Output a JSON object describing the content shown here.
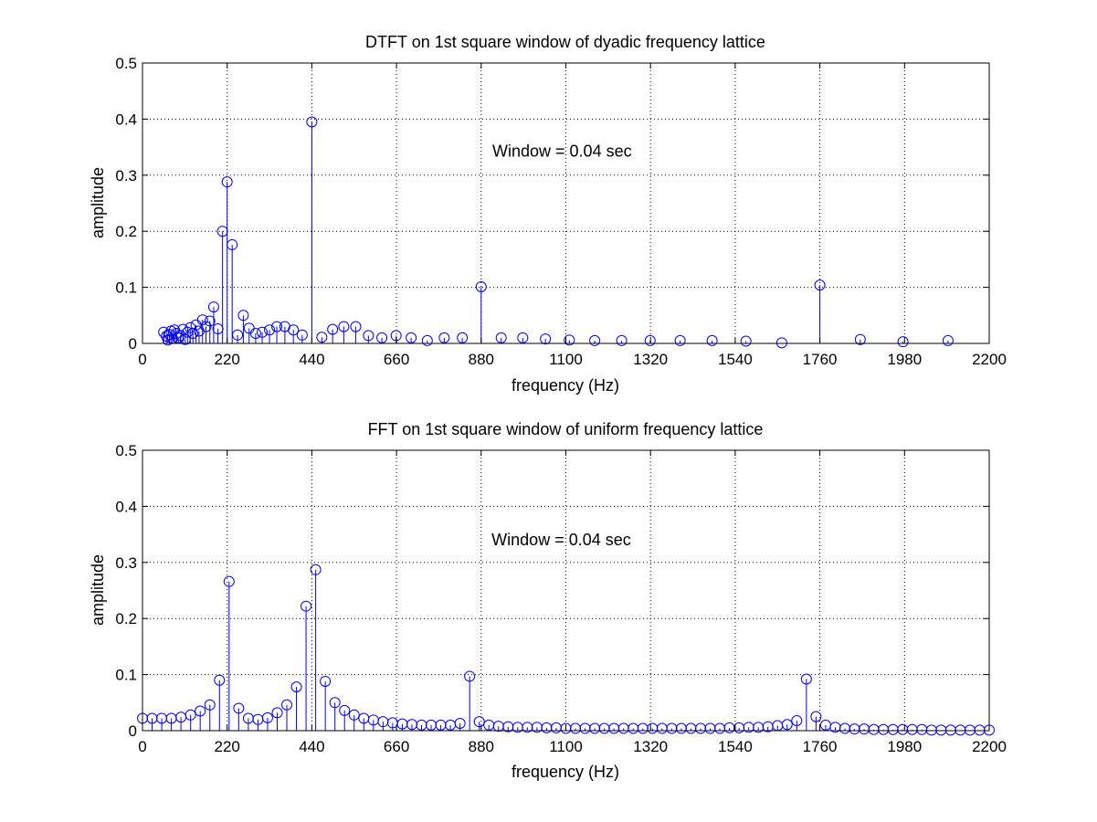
{
  "figure": {
    "background": "#ffffff",
    "stem_color": "#0000ff",
    "grid_color": "#000000"
  },
  "chart_data": [
    {
      "type": "stem",
      "title": "DTFT on 1st square window of dyadic frequency lattice",
      "xlabel": "frequency (Hz)",
      "ylabel": "amplitude",
      "xlim": [
        0,
        2200
      ],
      "ylim": [
        0,
        0.5
      ],
      "x_ticks": [
        0,
        220,
        440,
        660,
        880,
        1100,
        1320,
        1540,
        1760,
        1980,
        2200
      ],
      "x_tick_labels": [
        "0",
        "220",
        "440",
        "660",
        "880",
        "1100",
        "1320",
        "1540",
        "1760",
        "1980",
        "2200"
      ],
      "y_ticks": [
        0,
        0.1,
        0.2,
        0.3,
        0.4,
        0.5
      ],
      "y_tick_labels": [
        "0",
        "0.1",
        "0.2",
        "0.3",
        "0.4",
        "0.5"
      ],
      "grid": true,
      "annotation": "Window = 0.04 sec",
      "annotation_at": [
        909,
        0.333
      ],
      "points": [
        [
          55,
          0.02
        ],
        [
          62,
          0.013
        ],
        [
          66,
          0.006
        ],
        [
          70,
          0.016
        ],
        [
          74,
          0.022
        ],
        [
          78,
          0.009
        ],
        [
          83,
          0.024
        ],
        [
          88,
          0.018
        ],
        [
          93,
          0.01
        ],
        [
          99,
          0.014
        ],
        [
          105,
          0.025
        ],
        [
          111,
          0.007
        ],
        [
          117,
          0.02
        ],
        [
          124,
          0.028
        ],
        [
          131,
          0.018
        ],
        [
          139,
          0.033
        ],
        [
          147,
          0.022
        ],
        [
          156,
          0.042
        ],
        [
          165,
          0.03
        ],
        [
          175,
          0.04
        ],
        [
          185,
          0.065
        ],
        [
          196,
          0.026
        ],
        [
          208,
          0.2
        ],
        [
          220,
          0.288
        ],
        [
          233,
          0.176
        ],
        [
          247,
          0.015
        ],
        [
          262,
          0.05
        ],
        [
          277,
          0.027
        ],
        [
          294,
          0.018
        ],
        [
          311,
          0.02
        ],
        [
          330,
          0.024
        ],
        [
          349,
          0.03
        ],
        [
          370,
          0.03
        ],
        [
          392,
          0.024
        ],
        [
          415,
          0.015
        ],
        [
          440,
          0.395
        ],
        [
          466,
          0.011
        ],
        [
          494,
          0.025
        ],
        [
          523,
          0.03
        ],
        [
          554,
          0.03
        ],
        [
          587,
          0.014
        ],
        [
          622,
          0.01
        ],
        [
          659,
          0.014
        ],
        [
          698,
          0.01
        ],
        [
          740,
          0.005
        ],
        [
          784,
          0.01
        ],
        [
          831,
          0.01
        ],
        [
          880,
          0.101
        ],
        [
          932,
          0.01
        ],
        [
          988,
          0.01
        ],
        [
          1047,
          0.008
        ],
        [
          1109,
          0.006
        ],
        [
          1175,
          0.005
        ],
        [
          1245,
          0.005
        ],
        [
          1319,
          0.005
        ],
        [
          1397,
          0.005
        ],
        [
          1480,
          0.005
        ],
        [
          1568,
          0.004
        ],
        [
          1661,
          0.001
        ],
        [
          1760,
          0.104
        ],
        [
          1865,
          0.007
        ],
        [
          1976,
          0.003
        ],
        [
          2093,
          0.005
        ]
      ]
    },
    {
      "type": "stem",
      "title": "FFT on 1st square window of uniform frequency lattice",
      "xlabel": "frequency (Hz)",
      "ylabel": "amplitude",
      "xlim": [
        0,
        2200
      ],
      "ylim": [
        0,
        0.5
      ],
      "x_ticks": [
        0,
        220,
        440,
        660,
        880,
        1100,
        1320,
        1540,
        1760,
        1980,
        2200
      ],
      "x_tick_labels": [
        "0",
        "220",
        "440",
        "660",
        "880",
        "1100",
        "1320",
        "1540",
        "1760",
        "1980",
        "2200"
      ],
      "y_ticks": [
        0,
        0.1,
        0.2,
        0.3,
        0.4,
        0.5
      ],
      "y_tick_labels": [
        "0",
        "0.1",
        "0.2",
        "0.3",
        "0.4",
        "0.5"
      ],
      "grid": true,
      "annotation": "Window = 0.04 sec",
      "annotation_at": [
        907,
        0.331
      ],
      "x_step": 25,
      "y_values": [
        0.022,
        0.022,
        0.022,
        0.022,
        0.024,
        0.028,
        0.035,
        0.046,
        0.09,
        0.266,
        0.04,
        0.022,
        0.02,
        0.023,
        0.032,
        0.046,
        0.078,
        0.222,
        0.287,
        0.088,
        0.05,
        0.036,
        0.028,
        0.022,
        0.019,
        0.016,
        0.014,
        0.012,
        0.011,
        0.01,
        0.01,
        0.01,
        0.01,
        0.013,
        0.097,
        0.016,
        0.01,
        0.008,
        0.007,
        0.006,
        0.006,
        0.006,
        0.005,
        0.005,
        0.004,
        0.004,
        0.004,
        0.004,
        0.004,
        0.004,
        0.004,
        0.004,
        0.004,
        0.004,
        0.004,
        0.004,
        0.004,
        0.004,
        0.004,
        0.004,
        0.004,
        0.005,
        0.005,
        0.006,
        0.006,
        0.007,
        0.009,
        0.011,
        0.018,
        0.092,
        0.025,
        0.01,
        0.006,
        0.004,
        0.003,
        0.003,
        0.002,
        0.002,
        0.002,
        0.002,
        0.002,
        0.002,
        0.001,
        0.001,
        0.001,
        0.001,
        0.001,
        0.001,
        0.001
      ]
    }
  ]
}
